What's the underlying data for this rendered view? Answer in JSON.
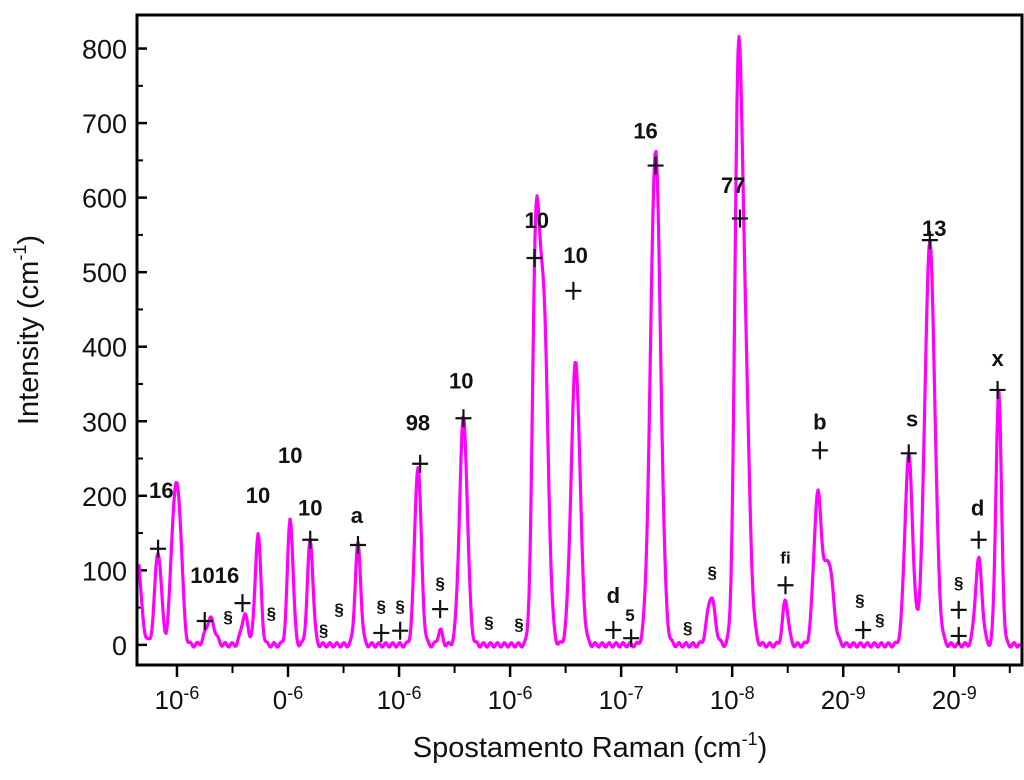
{
  "chart_data": {
    "type": "line",
    "title": "",
    "xlabel": "Spostamento Raman (cm",
    "xlabel_sup": "-1",
    "xlabel_close": ")",
    "ylabel": "Intensity (cm",
    "ylabel_sup": "-1",
    "ylabel_close": ")",
    "ylim": [
      -27,
      845
    ],
    "xlim": [
      -0.36,
      7.61
    ],
    "y_ticks": [
      0,
      100,
      200,
      300,
      400,
      500,
      600,
      700,
      800
    ],
    "x_ticks": [
      {
        "base": "10",
        "exp": "-6"
      },
      {
        "base": "0",
        "exp": "-6"
      },
      {
        "base": "10",
        "exp": "-6"
      },
      {
        "base": "10",
        "exp": "-6"
      },
      {
        "base": "10",
        "exp": "-7"
      },
      {
        "base": "10",
        "exp": "-8"
      },
      {
        "base": "20",
        "exp": "-9"
      },
      {
        "base": "20",
        "exp": "-9"
      }
    ],
    "grid": false,
    "line_color": "#ff00ff",
    "baseline": 0,
    "peaks": [
      {
        "x": -0.4,
        "y": 215,
        "w": 0.05
      },
      {
        "x": -0.17,
        "y": 125,
        "w": 0.03
      },
      {
        "x": -0.03,
        "y": 150,
        "w": 0.03
      },
      {
        "x": 0.02,
        "y": 155,
        "w": 0.03
      },
      {
        "x": 0.3,
        "y": 35,
        "w": 0.04
      },
      {
        "x": 0.61,
        "y": 40,
        "w": 0.03
      },
      {
        "x": 0.73,
        "y": 150,
        "w": 0.025
      },
      {
        "x": 1.02,
        "y": 170,
        "w": 0.025
      },
      {
        "x": 1.2,
        "y": 140,
        "w": 0.025
      },
      {
        "x": 1.63,
        "y": 135,
        "w": 0.025
      },
      {
        "x": 2.17,
        "y": 240,
        "w": 0.03
      },
      {
        "x": 2.37,
        "y": 20,
        "w": 0.02
      },
      {
        "x": 2.58,
        "y": 305,
        "w": 0.035
      },
      {
        "x": 3.23,
        "y": 480,
        "w": 0.03
      },
      {
        "x": 3.3,
        "y": 460,
        "w": 0.04
      },
      {
        "x": 3.59,
        "y": 380,
        "w": 0.04
      },
      {
        "x": 4.31,
        "y": 665,
        "w": 0.045
      },
      {
        "x": 4.81,
        "y": 65,
        "w": 0.035
      },
      {
        "x": 5.05,
        "y": 530,
        "w": 0.03
      },
      {
        "x": 5.1,
        "y": 470,
        "w": 0.045
      },
      {
        "x": 5.48,
        "y": 60,
        "w": 0.025
      },
      {
        "x": 5.77,
        "y": 200,
        "w": 0.035
      },
      {
        "x": 5.87,
        "y": 110,
        "w": 0.04
      },
      {
        "x": 6.59,
        "y": 255,
        "w": 0.035
      },
      {
        "x": 6.78,
        "y": 540,
        "w": 0.045
      },
      {
        "x": 7.22,
        "y": 115,
        "w": 0.03
      },
      {
        "x": 7.4,
        "y": 340,
        "w": 0.025
      }
    ],
    "markers": [
      [
        -0.17,
        129
      ],
      [
        0.25,
        32
      ],
      [
        0.59,
        56
      ],
      [
        1.2,
        141
      ],
      [
        1.63,
        134
      ],
      [
        1.84,
        16
      ],
      [
        2.01,
        19
      ],
      [
        2.19,
        243
      ],
      [
        2.37,
        48
      ],
      [
        2.58,
        304
      ],
      [
        3.22,
        519
      ],
      [
        3.57,
        475
      ],
      [
        3.93,
        20
      ],
      [
        4.09,
        9
      ],
      [
        4.31,
        643
      ],
      [
        5.07,
        572
      ],
      [
        5.48,
        80
      ],
      [
        5.79,
        261
      ],
      [
        6.18,
        20
      ],
      [
        6.59,
        257
      ],
      [
        6.78,
        543
      ],
      [
        7.04,
        47
      ],
      [
        7.04,
        12
      ],
      [
        7.22,
        141
      ],
      [
        7.39,
        342
      ]
    ],
    "annotations": [
      {
        "text": "16",
        "x": -0.14,
        "y": 208,
        "size": "big"
      },
      {
        "text": "1016",
        "x": 0.34,
        "y": 94,
        "size": "big"
      },
      {
        "text": "10",
        "x": 0.73,
        "y": 201,
        "size": "big"
      },
      {
        "text": "10",
        "x": 1.02,
        "y": 255,
        "size": "big"
      },
      {
        "text": "10",
        "x": 1.2,
        "y": 184,
        "size": "big"
      },
      {
        "text": "a",
        "x": 1.62,
        "y": 174,
        "size": "big"
      },
      {
        "text": "98",
        "x": 2.17,
        "y": 298,
        "size": "big"
      },
      {
        "text": "10",
        "x": 2.56,
        "y": 355,
        "size": "big"
      },
      {
        "text": "10",
        "x": 3.24,
        "y": 570,
        "size": "big"
      },
      {
        "text": "10",
        "x": 3.59,
        "y": 523,
        "size": "big"
      },
      {
        "text": "16",
        "x": 4.22,
        "y": 690,
        "size": "big"
      },
      {
        "text": "77",
        "x": 5.01,
        "y": 617,
        "size": "big"
      },
      {
        "text": "b",
        "x": 5.79,
        "y": 300,
        "size": "big"
      },
      {
        "text": "s",
        "x": 6.62,
        "y": 304,
        "size": "big"
      },
      {
        "text": "13",
        "x": 6.82,
        "y": 559,
        "size": "big"
      },
      {
        "text": "x",
        "x": 7.39,
        "y": 385,
        "size": "big"
      },
      {
        "text": "d",
        "x": 7.21,
        "y": 184,
        "size": "big"
      },
      {
        "text": "d",
        "x": 3.93,
        "y": 67,
        "size": "big"
      },
      {
        "text": "5",
        "x": 4.08,
        "y": 40,
        "size": "small"
      },
      {
        "text": "§",
        "x": 4.82,
        "y": 98,
        "size": "small"
      },
      {
        "text": "fi",
        "x": 5.48,
        "y": 117,
        "size": "small"
      },
      {
        "text": "§",
        "x": 6.15,
        "y": 60,
        "size": "small"
      },
      {
        "text": "§",
        "x": 6.33,
        "y": 34,
        "size": "small"
      },
      {
        "text": "§",
        "x": 7.04,
        "y": 84,
        "size": "small"
      },
      {
        "text": "§",
        "x": 0.46,
        "y": 38,
        "size": "small"
      },
      {
        "text": "§",
        "x": 0.85,
        "y": 43,
        "size": "small"
      },
      {
        "text": "§",
        "x": 1.32,
        "y": 20,
        "size": "small"
      },
      {
        "text": "§",
        "x": 1.46,
        "y": 48,
        "size": "small"
      },
      {
        "text": "§",
        "x": 1.84,
        "y": 52,
        "size": "small"
      },
      {
        "text": "§",
        "x": 2.01,
        "y": 52,
        "size": "small"
      },
      {
        "text": "§",
        "x": 2.37,
        "y": 83,
        "size": "small"
      },
      {
        "text": "§",
        "x": 2.81,
        "y": 31,
        "size": "small"
      },
      {
        "text": "§",
        "x": 3.08,
        "y": 28,
        "size": "small"
      },
      {
        "text": "§",
        "x": 4.6,
        "y": 23,
        "size": "small"
      }
    ]
  }
}
